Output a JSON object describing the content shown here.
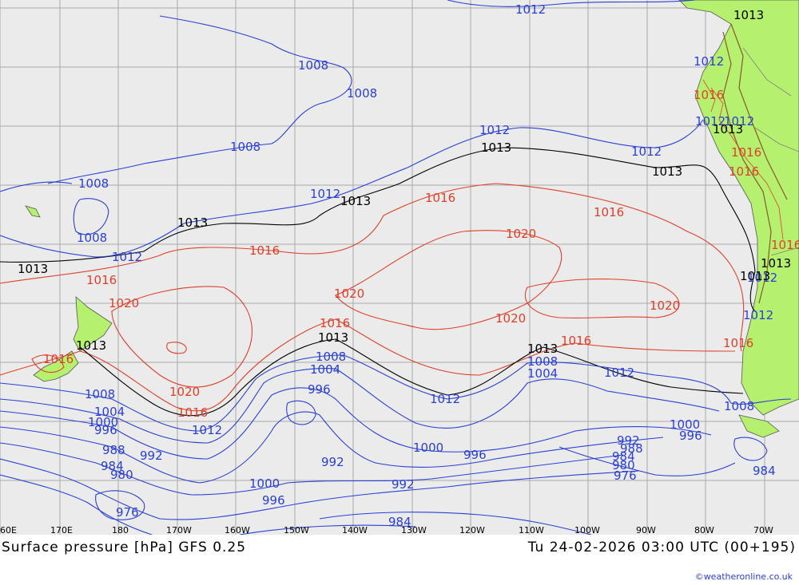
{
  "title": "Surface pressure [hPa] GFS 0.25",
  "valid_time": "Tu 24-02-2026 03:00 UTC (00+195)",
  "credit": "©weatheronline.co.uk",
  "colors": {
    "low": "#2a3fd6",
    "high": "#e0402a",
    "reference": "#000000",
    "land": "#b5f06e",
    "sea": "#ebebeb"
  },
  "longitude_labels": [
    "60E",
    "170E",
    "180",
    "170W",
    "160W",
    "150W",
    "140W",
    "130W",
    "120W",
    "110W",
    "100W",
    "90W",
    "80W",
    "70W"
  ],
  "isobar_labels_blue": [
    "1012",
    "1008",
    "1008",
    "1008",
    "1008",
    "1008",
    "1012",
    "1012",
    "1012",
    "1012",
    "1012",
    "1008",
    "1004",
    "1008",
    "1004",
    "1000",
    "996",
    "988",
    "992",
    "984",
    "980",
    "976",
    "1012",
    "996",
    "992",
    "1000",
    "996",
    "1012",
    "1000",
    "996",
    "992",
    "984",
    "1008",
    "1004",
    "1012",
    "1012",
    "1008",
    "1000",
    "996",
    "992",
    "988",
    "984",
    "980",
    "976",
    "984",
    "1012",
    "1012",
    "1012"
  ],
  "isobar_labels_red": [
    "1016",
    "1020",
    "1016",
    "1016",
    "1020",
    "1016",
    "1020",
    "1020",
    "1016",
    "1016",
    "1016",
    "1016",
    "1016",
    "1016",
    "1016",
    "1020",
    "1016",
    "1020",
    "1016"
  ],
  "isobar_labels_black": [
    "1013",
    "1013",
    "1013",
    "1013",
    "1013",
    "1013",
    "1013",
    "1013",
    "1013",
    "1013",
    "1013",
    "1013"
  ]
}
